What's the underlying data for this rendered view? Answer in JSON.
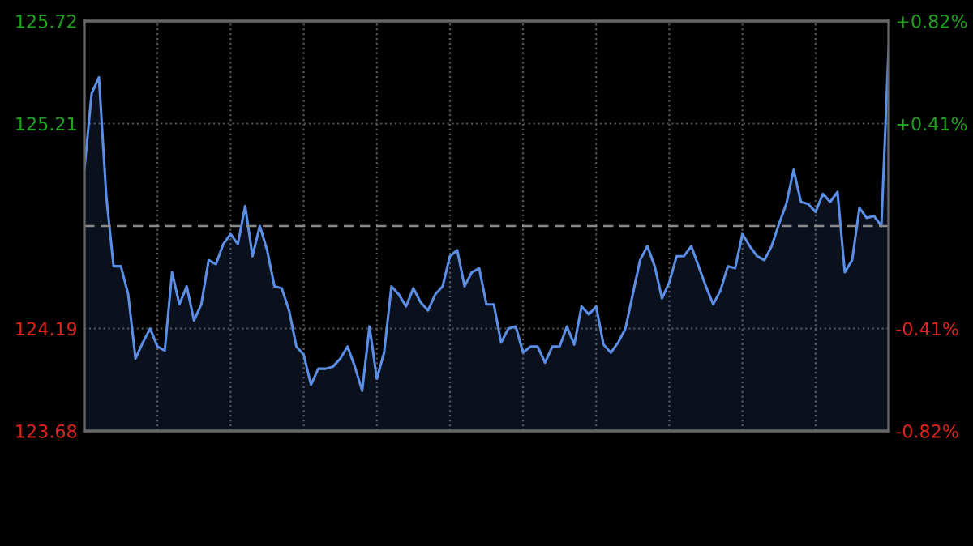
{
  "chart_data": {
    "type": "area",
    "categories": [
      null,
      null,
      null,
      null,
      null,
      null,
      null,
      null,
      null,
      null,
      null,
      null,
      null,
      null,
      null,
      null,
      null,
      null,
      null,
      null,
      null,
      null,
      null,
      null,
      null,
      null,
      null,
      null,
      null,
      null,
      null,
      null,
      null,
      null,
      null,
      null,
      null,
      null,
      null,
      null,
      null,
      null,
      null,
      null,
      null,
      null,
      null,
      null,
      null,
      null,
      null,
      null,
      null,
      null,
      null,
      null,
      null,
      null,
      null,
      null,
      null,
      null,
      null,
      null,
      null,
      null,
      null,
      null,
      null,
      null,
      null,
      null,
      null,
      null,
      null,
      null,
      null,
      null,
      null,
      null,
      null,
      null,
      null,
      null,
      null,
      null,
      null,
      null,
      null,
      null,
      null,
      null,
      null,
      null,
      null,
      null,
      null,
      null,
      null,
      null,
      null,
      null,
      null,
      null,
      null,
      null,
      null,
      null,
      null,
      null,
      null
    ],
    "series": [
      {
        "color": "#5b8ee6",
        "values": [
          124.98,
          125.36,
          125.44,
          124.85,
          124.5,
          124.5,
          124.36,
          124.04,
          124.12,
          124.19,
          124.1,
          124.08,
          124.47,
          124.31,
          124.4,
          124.23,
          124.31,
          124.53,
          124.51,
          124.61,
          124.66,
          124.61,
          124.8,
          124.55,
          124.7,
          124.58,
          124.4,
          124.39,
          124.28,
          124.1,
          124.06,
          123.91,
          123.99,
          123.99,
          124.0,
          124.04,
          124.1,
          124.0,
          123.88,
          124.2,
          123.94,
          124.07,
          124.4,
          124.36,
          124.3,
          124.39,
          124.32,
          124.28,
          124.36,
          124.4,
          124.55,
          124.58,
          124.4,
          124.47,
          124.49,
          124.31,
          124.31,
          124.12,
          124.19,
          124.2,
          124.07,
          124.1,
          124.1,
          124.02,
          124.1,
          124.1,
          124.2,
          124.11,
          124.3,
          124.26,
          124.3,
          124.11,
          124.07,
          124.12,
          124.19,
          124.36,
          124.53,
          124.6,
          124.5,
          124.34,
          124.42,
          124.55,
          124.55,
          124.6,
          124.5,
          124.4,
          124.31,
          124.38,
          124.5,
          124.49,
          124.66,
          124.6,
          124.55,
          124.53,
          124.6,
          124.71,
          124.81,
          124.98,
          124.82,
          124.81,
          124.77,
          124.86,
          124.82,
          124.87,
          124.47,
          124.53,
          124.79,
          124.74,
          124.75,
          124.7,
          125.59
        ]
      }
    ],
    "ylim": [
      123.68,
      125.72
    ],
    "yticks": [
      123.68,
      124.19,
      125.21,
      125.72
    ],
    "y2lim": [
      -0.82,
      0.82
    ],
    "y2ticks": [
      {
        "value": -0.82,
        "label": "-0.82%"
      },
      {
        "value": -0.41,
        "label": "-0.41%"
      },
      {
        "value": 0.41,
        "label": "+0.41%"
      },
      {
        "value": 0.82,
        "label": "+0.82%"
      }
    ],
    "ref_lines": [
      {
        "axis": "y",
        "value": 124.7,
        "color": "#8a8a8a",
        "line_style": "dashed"
      }
    ],
    "grid": true,
    "legend": false,
    "marker": "none",
    "line_style": "solid"
  }
}
